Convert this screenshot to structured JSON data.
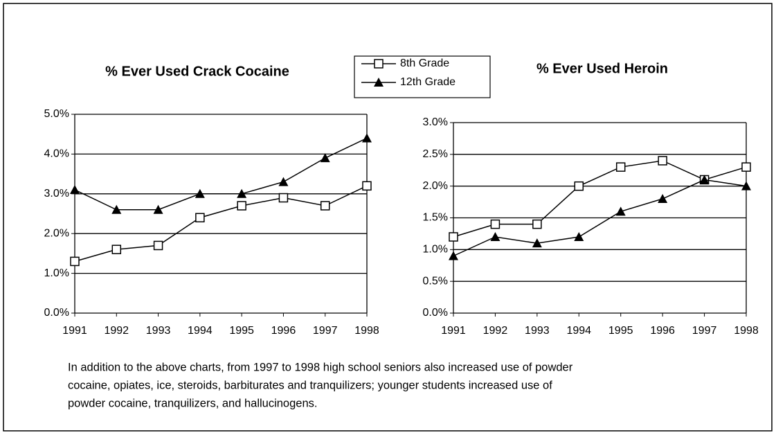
{
  "chart_data": [
    {
      "type": "line",
      "title": "% Ever Used Crack Cocaine",
      "categories": [
        "1991",
        "1992",
        "1993",
        "1994",
        "1995",
        "1996",
        "1997",
        "1998"
      ],
      "series": [
        {
          "name": "8th Grade",
          "color": "#000000",
          "marker": "square",
          "values": [
            1.3,
            1.6,
            1.7,
            2.4,
            2.7,
            2.9,
            2.7,
            3.2
          ]
        },
        {
          "name": "12th Grade",
          "color": "#000000",
          "marker": "triangle",
          "values": [
            3.1,
            2.6,
            2.6,
            3.0,
            3.0,
            3.3,
            3.9,
            4.4
          ]
        }
      ],
      "ylim": [
        0,
        5
      ],
      "yticks": [
        {
          "value": 0,
          "label": "0.0%"
        },
        {
          "value": 1,
          "label": "1.0%"
        },
        {
          "value": 2,
          "label": "2.0%"
        },
        {
          "value": 3,
          "label": "3.0%"
        },
        {
          "value": 4,
          "label": "4.0%"
        },
        {
          "value": 5,
          "label": "5.0%"
        }
      ],
      "grid": true
    },
    {
      "type": "line",
      "title": "% Ever Used Heroin",
      "categories": [
        "1991",
        "1992",
        "1993",
        "1994",
        "1995",
        "1996",
        "1997",
        "1998"
      ],
      "series": [
        {
          "color": "#000000",
          "marker": "square",
          "values": [
            1.2,
            1.4,
            1.4,
            2.0,
            2.3,
            2.4,
            2.1,
            2.3
          ]
        },
        {
          "color": "#000000",
          "marker": "triangle",
          "values": [
            0.9,
            1.2,
            1.1,
            1.2,
            1.6,
            1.8,
            2.1,
            2.0
          ]
        }
      ],
      "ylim": [
        0,
        3
      ],
      "yticks": [
        {
          "value": 0,
          "label": "0.0%"
        },
        {
          "value": 0.5,
          "label": "0.5%"
        },
        {
          "value": 1,
          "label": "1.0%"
        },
        {
          "value": 1.5,
          "label": "1.5%"
        },
        {
          "value": 2,
          "label": "2.0%"
        },
        {
          "value": 2.5,
          "label": "2.5%"
        },
        {
          "value": 3,
          "label": "3.0%"
        }
      ],
      "grid": true
    }
  ],
  "caption": [
    "In addition to the above charts, from 1997 to 1998 high school seniors also increased use of powder",
    "cocaine, opiates, ice, steroids, barbiturates and tranquilizers; younger students increased use of",
    "powder cocaine, tranquilizers, and hallucinogens."
  ]
}
